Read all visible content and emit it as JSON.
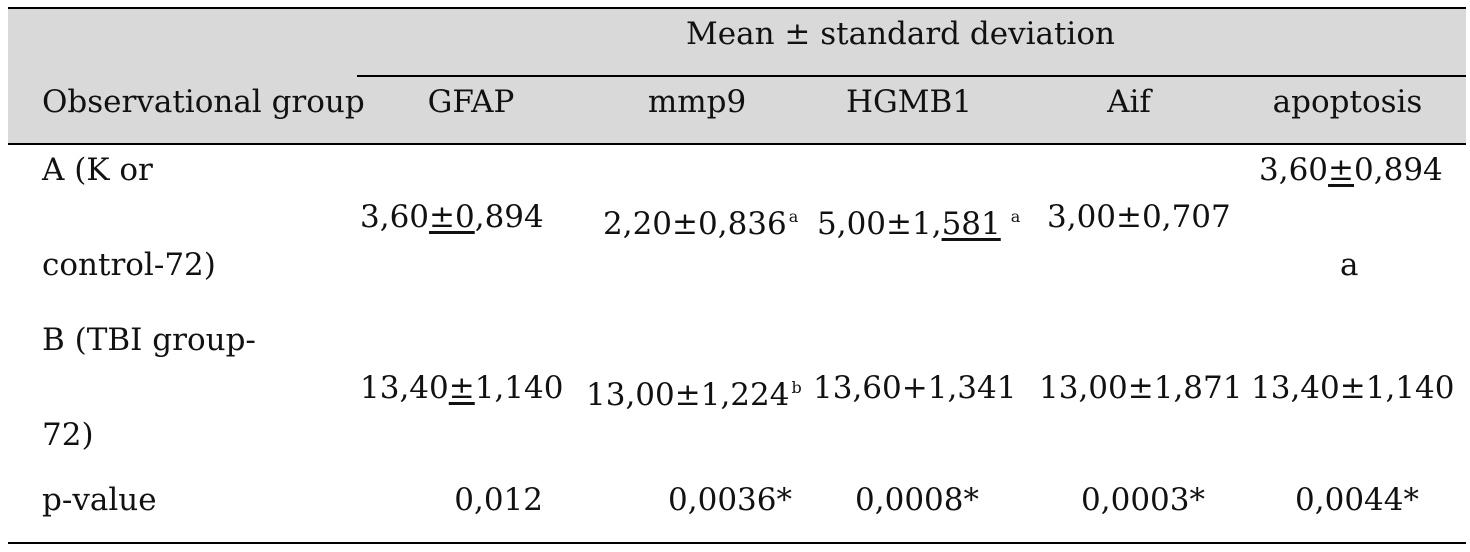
{
  "table": {
    "header": {
      "group_label": "Observational group",
      "span_label": "Mean ± standard deviation",
      "columns": [
        "GFAP",
        "mmp9",
        "HGMB1",
        "Aif",
        "apoptosis"
      ]
    },
    "rows": [
      {
        "group_line1": "A (K or",
        "group_line2": "control-72)",
        "gfap": {
          "a": "3,60",
          "b": "±0",
          "c": ",894"
        },
        "mmp9": {
          "value": "2,20±0,836",
          "sup": "a"
        },
        "hgmb1": {
          "a": "5,00±1,",
          "b": "581",
          "sup": "a"
        },
        "aif": "3,00±0,707",
        "apoptosis": {
          "a": "3,60",
          "b": "±",
          "c": "0,894",
          "note": "a"
        }
      },
      {
        "group_line1": "B (TBI group-",
        "group_line2": "72)",
        "gfap": {
          "a": "13,40",
          "b": "±",
          "c": "1,140"
        },
        "mmp9": {
          "value": "13,00±1,224",
          "sup": "b"
        },
        "hgmb1": "13,60+1,341",
        "aif": "13,00±1,871",
        "apoptosis": "13,40±1,140"
      },
      {
        "group": "p-value",
        "gfap": "0,012",
        "mmp9": "0,0036*",
        "hgmb1": "0,0008*",
        "aif": "0,0003*",
        "apoptosis": "0,0044*"
      }
    ]
  }
}
